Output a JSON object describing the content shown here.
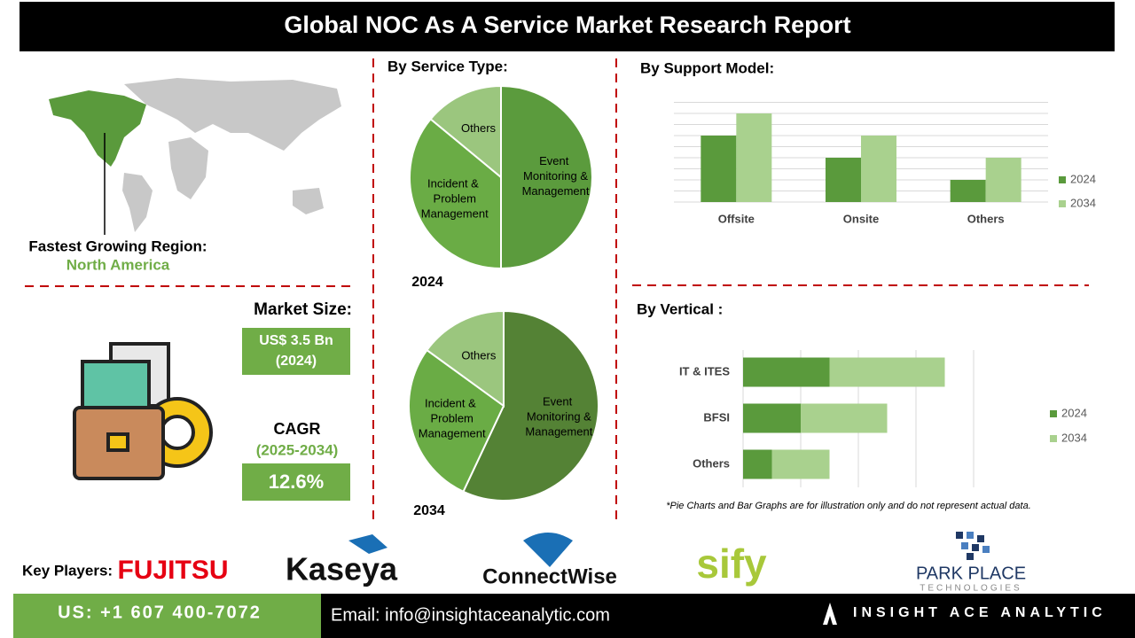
{
  "header": {
    "title": "Global NOC As A Service Market Research Report"
  },
  "region": {
    "label": "Fastest Growing Region:",
    "value": "North America"
  },
  "market_size": {
    "label": "Market Size:",
    "value": "US$ 3.5 Bn",
    "year": "(2024)"
  },
  "cagr": {
    "label": "CAGR",
    "period": "(2025-2034)",
    "value": "12.6%"
  },
  "chart_data": [
    {
      "type": "pie",
      "title": "By Service Type:",
      "label": "2024",
      "categories": [
        "Event Monitoring & Management",
        "Incident & Problem Management",
        "Others"
      ],
      "values": [
        50,
        36,
        14
      ],
      "colors": [
        "#5b9b3d",
        "#6aac45",
        "#9bc67e"
      ]
    },
    {
      "type": "pie",
      "label": "2034",
      "categories": [
        "Event Monitoring & Management",
        "Incident & Problem Management",
        "Others"
      ],
      "values": [
        57,
        28,
        15
      ],
      "colors": [
        "#548235",
        "#6aac45",
        "#9bc67e"
      ]
    },
    {
      "type": "bar",
      "title": "By Support Model:",
      "categories": [
        "Offsite",
        "Onsite",
        "Others"
      ],
      "series": [
        {
          "name": "2024",
          "color": "#5a9a3c",
          "values": [
            6,
            4,
            2
          ]
        },
        {
          "name": "2034",
          "color": "#a9d18e",
          "values": [
            8,
            6,
            4
          ]
        }
      ],
      "ylim": [
        0,
        9
      ],
      "yticks": [
        0,
        1,
        2,
        3,
        4,
        5,
        6,
        7,
        8,
        9
      ],
      "grid": true
    },
    {
      "type": "hbar-stacked",
      "title": "By Vertical :",
      "categories": [
        "IT & ITES",
        "BFSI",
        "Others"
      ],
      "series": [
        {
          "name": "2024",
          "color": "#5a9a3c",
          "values": [
            3,
            2,
            1
          ]
        },
        {
          "name": "2034",
          "color": "#a9d18e",
          "values": [
            4,
            3,
            2
          ]
        }
      ],
      "xlim": [
        0,
        8
      ],
      "xticks": [
        0,
        2,
        4,
        6,
        8
      ],
      "grid": true
    }
  ],
  "note": "*Pie Charts and Bar Graphs are for illustration only and do not represent actual data.",
  "key_players": {
    "label": "Key Players:",
    "companies": [
      "FUJITSU",
      "Kaseya",
      "ConnectWise",
      "sify",
      "PARK PLACE",
      "TECHNOLOGIES"
    ]
  },
  "footer": {
    "phone": "US: +1 607 400-7072",
    "email": "Email: info@insightaceanalytic.com",
    "brand": "INSIGHT ACE ANALYTIC"
  }
}
